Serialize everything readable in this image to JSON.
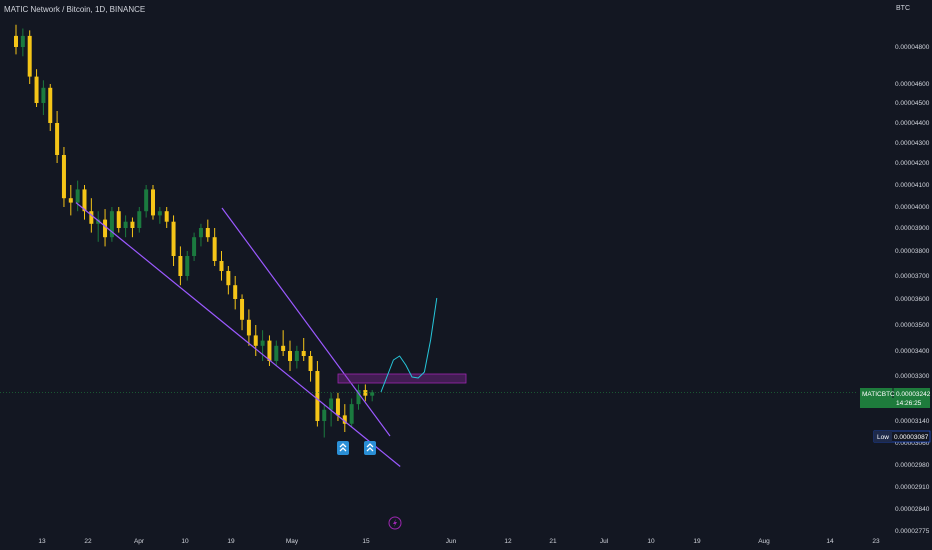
{
  "header": {
    "title": "MATIC Network / Bitcoin, 1D, BINANCE",
    "currency": "BTC"
  },
  "price_tag": {
    "symbol": "MATICBTC",
    "value": "0.00003242",
    "countdown": "14:26:25"
  },
  "low_tag": {
    "label": "Low",
    "value": "0.00003087"
  },
  "colors": {
    "background": "#131722",
    "up": "#1b7a3f",
    "down": "#f5c518",
    "trendline": "#9b59ff",
    "zone": "#9c27b0",
    "forecast": "#26c6da"
  },
  "chart_data": {
    "type": "candlestick",
    "y_ticks": [
      "0.00004800",
      "0.00004600",
      "0.00004500",
      "0.00004400",
      "0.00004300",
      "0.00004200",
      "0.00004100",
      "0.00004000",
      "0.00003900",
      "0.00003800",
      "0.00003700",
      "0.00003600",
      "0.00003500",
      "0.00003400",
      "0.00003300",
      "0.00003140",
      "0.00003060",
      "0.00002980",
      "0.00002910",
      "0.00002840",
      "0.00002775"
    ],
    "x_ticks": [
      "13",
      "22",
      "Apr",
      "10",
      "19",
      "May",
      "15",
      "Jun",
      "12",
      "21",
      "Jul",
      "10",
      "19",
      "Aug",
      "14",
      "23"
    ],
    "current_price": 3.242e-05,
    "low": 3.087e-05,
    "resistance_zone": [
      3.25e-05,
      3.28e-05
    ],
    "candles": [
      {
        "o": 4.86,
        "h": 4.92,
        "l": 4.76,
        "c": 4.8
      },
      {
        "o": 4.8,
        "h": 4.9,
        "l": 4.75,
        "c": 4.86
      },
      {
        "o": 4.86,
        "h": 4.89,
        "l": 4.6,
        "c": 4.64
      },
      {
        "o": 4.64,
        "h": 4.68,
        "l": 4.48,
        "c": 4.5
      },
      {
        "o": 4.5,
        "h": 4.62,
        "l": 4.44,
        "c": 4.58
      },
      {
        "o": 4.58,
        "h": 4.6,
        "l": 4.36,
        "c": 4.4
      },
      {
        "o": 4.4,
        "h": 4.46,
        "l": 4.2,
        "c": 4.24
      },
      {
        "o": 4.24,
        "h": 4.28,
        "l": 4.0,
        "c": 4.04
      },
      {
        "o": 4.04,
        "h": 4.1,
        "l": 3.96,
        "c": 4.02
      },
      {
        "o": 4.02,
        "h": 4.12,
        "l": 3.98,
        "c": 4.08
      },
      {
        "o": 4.08,
        "h": 4.1,
        "l": 3.94,
        "c": 3.98
      },
      {
        "o": 3.98,
        "h": 4.04,
        "l": 3.88,
        "c": 3.92
      },
      {
        "o": 3.92,
        "h": 3.98,
        "l": 3.84,
        "c": 3.94
      },
      {
        "o": 3.94,
        "h": 3.99,
        "l": 3.82,
        "c": 3.86
      },
      {
        "o": 3.86,
        "h": 4.0,
        "l": 3.84,
        "c": 3.98
      },
      {
        "o": 3.98,
        "h": 4.0,
        "l": 3.88,
        "c": 3.9
      },
      {
        "o": 3.9,
        "h": 3.96,
        "l": 3.86,
        "c": 3.93
      },
      {
        "o": 3.93,
        "h": 3.95,
        "l": 3.86,
        "c": 3.9
      },
      {
        "o": 3.9,
        "h": 4.0,
        "l": 3.88,
        "c": 3.98
      },
      {
        "o": 3.98,
        "h": 4.1,
        "l": 3.95,
        "c": 4.08
      },
      {
        "o": 4.08,
        "h": 4.1,
        "l": 3.94,
        "c": 3.96
      },
      {
        "o": 3.96,
        "h": 4.0,
        "l": 3.92,
        "c": 3.98
      },
      {
        "o": 3.98,
        "h": 4.0,
        "l": 3.9,
        "c": 3.93
      },
      {
        "o": 3.93,
        "h": 3.96,
        "l": 3.74,
        "c": 3.78
      },
      {
        "o": 3.78,
        "h": 3.82,
        "l": 3.66,
        "c": 3.7
      },
      {
        "o": 3.7,
        "h": 3.8,
        "l": 3.68,
        "c": 3.78
      },
      {
        "o": 3.78,
        "h": 3.88,
        "l": 3.76,
        "c": 3.86
      },
      {
        "o": 3.86,
        "h": 3.92,
        "l": 3.82,
        "c": 3.9
      },
      {
        "o": 3.9,
        "h": 3.94,
        "l": 3.84,
        "c": 3.86
      },
      {
        "o": 3.86,
        "h": 3.9,
        "l": 3.74,
        "c": 3.76
      },
      {
        "o": 3.76,
        "h": 3.8,
        "l": 3.68,
        "c": 3.72
      },
      {
        "o": 3.72,
        "h": 3.74,
        "l": 3.62,
        "c": 3.66
      },
      {
        "o": 3.66,
        "h": 3.7,
        "l": 3.56,
        "c": 3.6
      },
      {
        "o": 3.6,
        "h": 3.62,
        "l": 3.48,
        "c": 3.52
      },
      {
        "o": 3.52,
        "h": 3.56,
        "l": 3.42,
        "c": 3.46
      },
      {
        "o": 3.46,
        "h": 3.5,
        "l": 3.38,
        "c": 3.42
      },
      {
        "o": 3.42,
        "h": 3.48,
        "l": 3.36,
        "c": 3.44
      },
      {
        "o": 3.44,
        "h": 3.46,
        "l": 3.34,
        "c": 3.36
      },
      {
        "o": 3.36,
        "h": 3.44,
        "l": 3.34,
        "c": 3.42
      },
      {
        "o": 3.42,
        "h": 3.48,
        "l": 3.38,
        "c": 3.4
      },
      {
        "o": 3.4,
        "h": 3.44,
        "l": 3.32,
        "c": 3.36
      },
      {
        "o": 3.36,
        "h": 3.42,
        "l": 3.33,
        "c": 3.4
      },
      {
        "o": 3.4,
        "h": 3.45,
        "l": 3.36,
        "c": 3.38
      },
      {
        "o": 3.38,
        "h": 3.4,
        "l": 3.28,
        "c": 3.32
      },
      {
        "o": 3.32,
        "h": 3.36,
        "l": 3.12,
        "c": 3.14
      },
      {
        "o": 3.14,
        "h": 3.2,
        "l": 3.08,
        "c": 3.18
      },
      {
        "o": 3.18,
        "h": 3.24,
        "l": 3.12,
        "c": 3.22
      },
      {
        "o": 3.22,
        "h": 3.24,
        "l": 3.14,
        "c": 3.16
      },
      {
        "o": 3.16,
        "h": 3.2,
        "l": 3.1,
        "c": 3.13
      },
      {
        "o": 3.13,
        "h": 3.22,
        "l": 3.12,
        "c": 3.2
      },
      {
        "o": 3.2,
        "h": 3.27,
        "l": 3.18,
        "c": 3.25
      },
      {
        "o": 3.25,
        "h": 3.27,
        "l": 3.21,
        "c": 3.23
      },
      {
        "o": 3.23,
        "h": 3.25,
        "l": 3.21,
        "c": 3.242
      }
    ],
    "forecast_path": [
      [
        3.242,
        0
      ],
      [
        3.26,
        1
      ],
      [
        3.3,
        2
      ],
      [
        3.31,
        3
      ],
      [
        3.28,
        4
      ],
      [
        3.27,
        5
      ],
      [
        3.29,
        6
      ],
      [
        3.36,
        7
      ],
      [
        3.48,
        8
      ],
      [
        3.6,
        9
      ]
    ],
    "lower_trendline": [
      {
        "i": 0,
        "p": 4.02
      },
      {
        "i": 52,
        "p": 3.04
      }
    ],
    "upper_trendline": [
      {
        "i": 25,
        "p": 4.0
      },
      {
        "i": 54,
        "p": 3.12
      }
    ],
    "markers": [
      "double-arrow-up-icon",
      "double-arrow-up-icon"
    ]
  }
}
